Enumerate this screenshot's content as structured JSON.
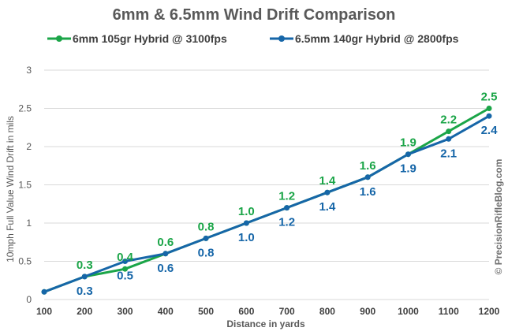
{
  "chart_data": {
    "type": "line",
    "title": "6mm & 6.5mm Wind Drift Comparison",
    "xlabel": "Distance in yards",
    "ylabel": "10mph Full Value Wind Drift in mils",
    "x": [
      100,
      200,
      300,
      400,
      500,
      600,
      700,
      800,
      900,
      1000,
      1100,
      1200
    ],
    "ylim": [
      0,
      3
    ],
    "yticks": [
      0,
      0.5,
      1,
      1.5,
      2,
      2.5,
      3
    ],
    "ytick_labels": [
      "0",
      "0.5",
      "1",
      "1.5",
      "2",
      "2.5",
      "3"
    ],
    "xtick_labels": [
      "100",
      "200",
      "300",
      "400",
      "500",
      "600",
      "700",
      "800",
      "900",
      "1000",
      "1100",
      "1200"
    ],
    "grid": "horizontal",
    "legend_position": "top",
    "series": [
      {
        "name": "6mm 105gr Hybrid @ 3100fps",
        "color": "#1ba548",
        "values": [
          0.1,
          0.3,
          0.4,
          0.6,
          0.8,
          1.0,
          1.2,
          1.4,
          1.6,
          1.9,
          2.2,
          2.5
        ],
        "labels": [
          "",
          "0.3",
          "0.4",
          "0.6",
          "0.8",
          "1.0",
          "1.2",
          "1.4",
          "1.6",
          "1.9",
          "2.2",
          "2.5"
        ],
        "label_position": "above"
      },
      {
        "name": "6.5mm 140gr Hybrid @ 2800fps",
        "color": "#1666a8",
        "values": [
          0.1,
          0.3,
          0.5,
          0.6,
          0.8,
          1.0,
          1.2,
          1.4,
          1.6,
          1.9,
          2.1,
          2.4
        ],
        "labels": [
          "",
          "0.3",
          "0.5",
          "0.6",
          "0.8",
          "1.0",
          "1.2",
          "1.4",
          "1.6",
          "1.9",
          "2.1",
          "2.4"
        ],
        "label_position": "below"
      }
    ],
    "watermark": "© PrecisionRifleBlog.com"
  }
}
